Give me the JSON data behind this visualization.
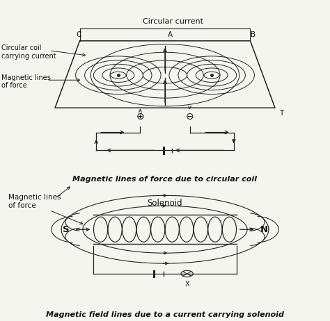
{
  "bg_color": "#f5f5f0",
  "text_color": "#111111",
  "line_color": "#222222",
  "fig_width": 4.74,
  "fig_height": 4.62,
  "caption1": "Magnetic lines of force due to circular coil",
  "caption2": "Magnetic field lines due to a current carrying solenoid",
  "label_circular_coil": "Circular coil\ncarrying current",
  "label_mag_lines1": "Magnetic lines\nof force",
  "label_mag_lines2": "Magnetic lines\nof force",
  "label_solenoid": "Solenoid",
  "label_circular_current": "Circular current",
  "label_C": "C",
  "label_A": "A",
  "label_B": "B",
  "label_T": "T",
  "label_S": "S",
  "label_N": "N"
}
